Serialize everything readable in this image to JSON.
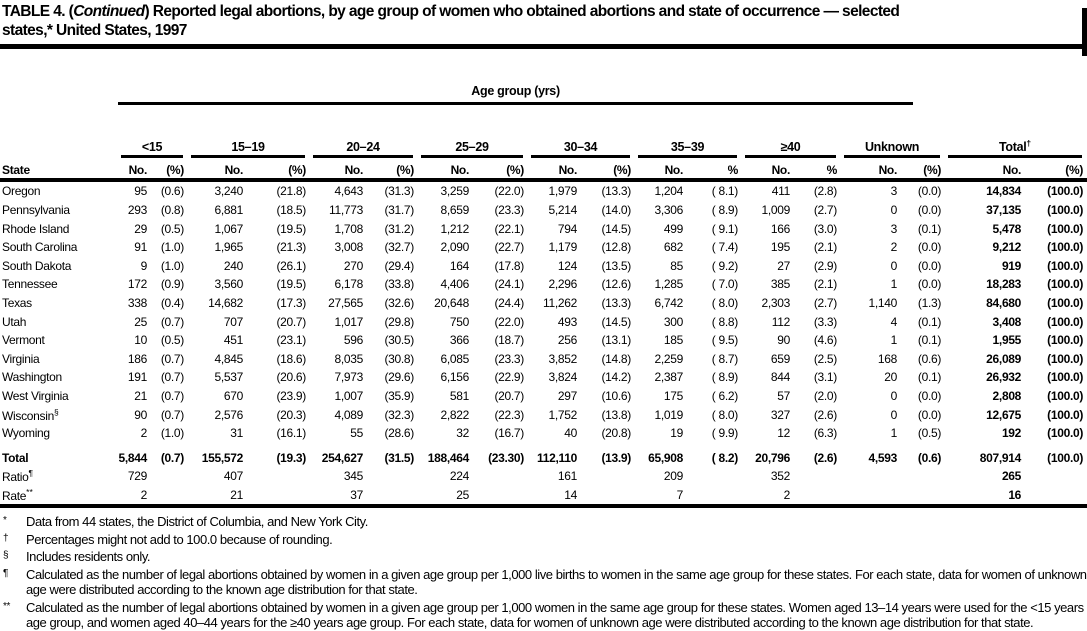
{
  "title": {
    "pre": "TABLE 4. (",
    "italic": "Continued",
    "post_line1": ") Reported legal abortions, by age group of women who obtained abortions and state of occurrence — selected",
    "line2": "states,* United States, 1997"
  },
  "table": {
    "age_group_header": "Age group (yrs)",
    "state_col_header": "State",
    "groups": [
      {
        "label": "<15",
        "no": "No.",
        "pct": "(%)"
      },
      {
        "label": "15–19",
        "no": "No.",
        "pct": "(%)"
      },
      {
        "label": "20–24",
        "no": "No.",
        "pct": "(%)"
      },
      {
        "label": "25–29",
        "no": "No.",
        "pct": "(%)"
      },
      {
        "label": "30–34",
        "no": "No.",
        "pct": "(%)"
      },
      {
        "label": "35–39",
        "no": "No.",
        "pct": "%"
      },
      {
        "label": "≥40",
        "no": "No.",
        "pct": "%"
      },
      {
        "label": "Unknown",
        "no": "No.",
        "pct": "(%)"
      },
      {
        "label": "Total",
        "sup": "†",
        "no": "No.",
        "pct": "(%)"
      }
    ],
    "rows": [
      {
        "state": "Oregon",
        "cells": [
          "95",
          "(0.6)",
          "3,240",
          "(21.8)",
          "4,643",
          "(31.3)",
          "3,259",
          "(22.0)",
          "1,979",
          "(13.3)",
          "1,204",
          "( 8.1)",
          "411",
          "(2.8)",
          "3",
          "(0.0)",
          "14,834",
          "(100.0)"
        ]
      },
      {
        "state": "Pennsylvania",
        "cells": [
          "293",
          "(0.8)",
          "6,881",
          "(18.5)",
          "11,773",
          "(31.7)",
          "8,659",
          "(23.3)",
          "5,214",
          "(14.0)",
          "3,306",
          "( 8.9)",
          "1,009",
          "(2.7)",
          "0",
          "(0.0)",
          "37,135",
          "(100.0)"
        ]
      },
      {
        "state": "Rhode Island",
        "cells": [
          "29",
          "(0.5)",
          "1,067",
          "(19.5)",
          "1,708",
          "(31.2)",
          "1,212",
          "(22.1)",
          "794",
          "(14.5)",
          "499",
          "( 9.1)",
          "166",
          "(3.0)",
          "3",
          "(0.1)",
          "5,478",
          "(100.0)"
        ]
      },
      {
        "state": "South Carolina",
        "cells": [
          "91",
          "(1.0)",
          "1,965",
          "(21.3)",
          "3,008",
          "(32.7)",
          "2,090",
          "(22.7)",
          "1,179",
          "(12.8)",
          "682",
          "( 7.4)",
          "195",
          "(2.1)",
          "2",
          "(0.0)",
          "9,212",
          "(100.0)"
        ]
      },
      {
        "state": "South Dakota",
        "cells": [
          "9",
          "(1.0)",
          "240",
          "(26.1)",
          "270",
          "(29.4)",
          "164",
          "(17.8)",
          "124",
          "(13.5)",
          "85",
          "( 9.2)",
          "27",
          "(2.9)",
          "0",
          "(0.0)",
          "919",
          "(100.0)"
        ]
      },
      {
        "state": "Tennessee",
        "cells": [
          "172",
          "(0.9)",
          "3,560",
          "(19.5)",
          "6,178",
          "(33.8)",
          "4,406",
          "(24.1)",
          "2,296",
          "(12.6)",
          "1,285",
          "( 7.0)",
          "385",
          "(2.1)",
          "1",
          "(0.0)",
          "18,283",
          "(100.0)"
        ]
      },
      {
        "state": "Texas",
        "cells": [
          "338",
          "(0.4)",
          "14,682",
          "(17.3)",
          "27,565",
          "(32.6)",
          "20,648",
          "(24.4)",
          "11,262",
          "(13.3)",
          "6,742",
          "( 8.0)",
          "2,303",
          "(2.7)",
          "1,140",
          "(1.3)",
          "84,680",
          "(100.0)"
        ]
      },
      {
        "state": "Utah",
        "cells": [
          "25",
          "(0.7)",
          "707",
          "(20.7)",
          "1,017",
          "(29.8)",
          "750",
          "(22.0)",
          "493",
          "(14.5)",
          "300",
          "( 8.8)",
          "112",
          "(3.3)",
          "4",
          "(0.1)",
          "3,408",
          "(100.0)"
        ]
      },
      {
        "state": "Vermont",
        "cells": [
          "10",
          "(0.5)",
          "451",
          "(23.1)",
          "596",
          "(30.5)",
          "366",
          "(18.7)",
          "256",
          "(13.1)",
          "185",
          "( 9.5)",
          "90",
          "(4.6)",
          "1",
          "(0.1)",
          "1,955",
          "(100.0)"
        ]
      },
      {
        "state": "Virginia",
        "cells": [
          "186",
          "(0.7)",
          "4,845",
          "(18.6)",
          "8,035",
          "(30.8)",
          "6,085",
          "(23.3)",
          "3,852",
          "(14.8)",
          "2,259",
          "( 8.7)",
          "659",
          "(2.5)",
          "168",
          "(0.6)",
          "26,089",
          "(100.0)"
        ]
      },
      {
        "state": "Washington",
        "cells": [
          "191",
          "(0.7)",
          "5,537",
          "(20.6)",
          "7,973",
          "(29.6)",
          "6,156",
          "(22.9)",
          "3,824",
          "(14.2)",
          "2,387",
          "( 8.9)",
          "844",
          "(3.1)",
          "20",
          "(0.1)",
          "26,932",
          "(100.0)"
        ]
      },
      {
        "state": "West Virginia",
        "cells": [
          "21",
          "(0.7)",
          "670",
          "(23.9)",
          "1,007",
          "(35.9)",
          "581",
          "(20.7)",
          "297",
          "(10.6)",
          "175",
          "( 6.2)",
          "57",
          "(2.0)",
          "0",
          "(0.0)",
          "2,808",
          "(100.0)"
        ]
      },
      {
        "state": "Wisconsin",
        "sup": "§",
        "cells": [
          "90",
          "(0.7)",
          "2,576",
          "(20.3)",
          "4,089",
          "(32.3)",
          "2,822",
          "(22.3)",
          "1,752",
          "(13.8)",
          "1,019",
          "( 8.0)",
          "327",
          "(2.6)",
          "0",
          "(0.0)",
          "12,675",
          "(100.0)"
        ]
      },
      {
        "state": "Wyoming",
        "cells": [
          "2",
          "(1.0)",
          "31",
          "(16.1)",
          "55",
          "(28.6)",
          "32",
          "(16.7)",
          "40",
          "(20.8)",
          "19",
          "( 9.9)",
          "12",
          "(6.3)",
          "1",
          "(0.5)",
          "192",
          "(100.0)"
        ]
      }
    ],
    "summary_rows": [
      {
        "label": "Total",
        "bold": true,
        "cells": [
          "5,844",
          "(0.7)",
          "155,572",
          "(19.3)",
          "254,627",
          "(31.5)",
          "188,464",
          "(23.30)",
          "112,110",
          "(13.9)",
          "65,908",
          "( 8.2)",
          "20,796",
          "(2.6)",
          "4,593",
          "(0.6)",
          "807,914",
          "(100.0)"
        ]
      },
      {
        "label": "Ratio",
        "sup": "¶",
        "cells": [
          "729",
          "",
          "407",
          "",
          "345",
          "",
          "224",
          "",
          "161",
          "",
          "209",
          "",
          "352",
          "",
          "",
          "",
          "265",
          ""
        ]
      },
      {
        "label": "Rate",
        "sup": "**",
        "cells": [
          "2",
          "",
          "21",
          "",
          "37",
          "",
          "25",
          "",
          "14",
          "",
          "7",
          "",
          "2",
          "",
          "",
          "",
          "16",
          ""
        ]
      }
    ]
  },
  "footnotes": [
    {
      "marker": "*",
      "text": "Data from 44 states, the District of Columbia, and New York City."
    },
    {
      "marker": "†",
      "text": "Percentages might not add to 100.0 because of rounding."
    },
    {
      "marker": "§",
      "text": "Includes residents only."
    },
    {
      "marker": "¶",
      "text": "Calculated as the number of legal abortions obtained by women in a given age group per 1,000 live births to women in the same age group for these states. For each state, data for women of unknown age were distributed according to the known age distribution for that state."
    },
    {
      "marker": "**",
      "text": "Calculated as the number of legal abortions obtained by women in a given age group per 1,000 women in the same age group for these states. Women aged 13–14 years were used for the <15 years age group, and women aged 40–44 years for the ≥40 years age group. For each state, data for women of unknown age were distributed according to the known age distribution for that state."
    }
  ]
}
